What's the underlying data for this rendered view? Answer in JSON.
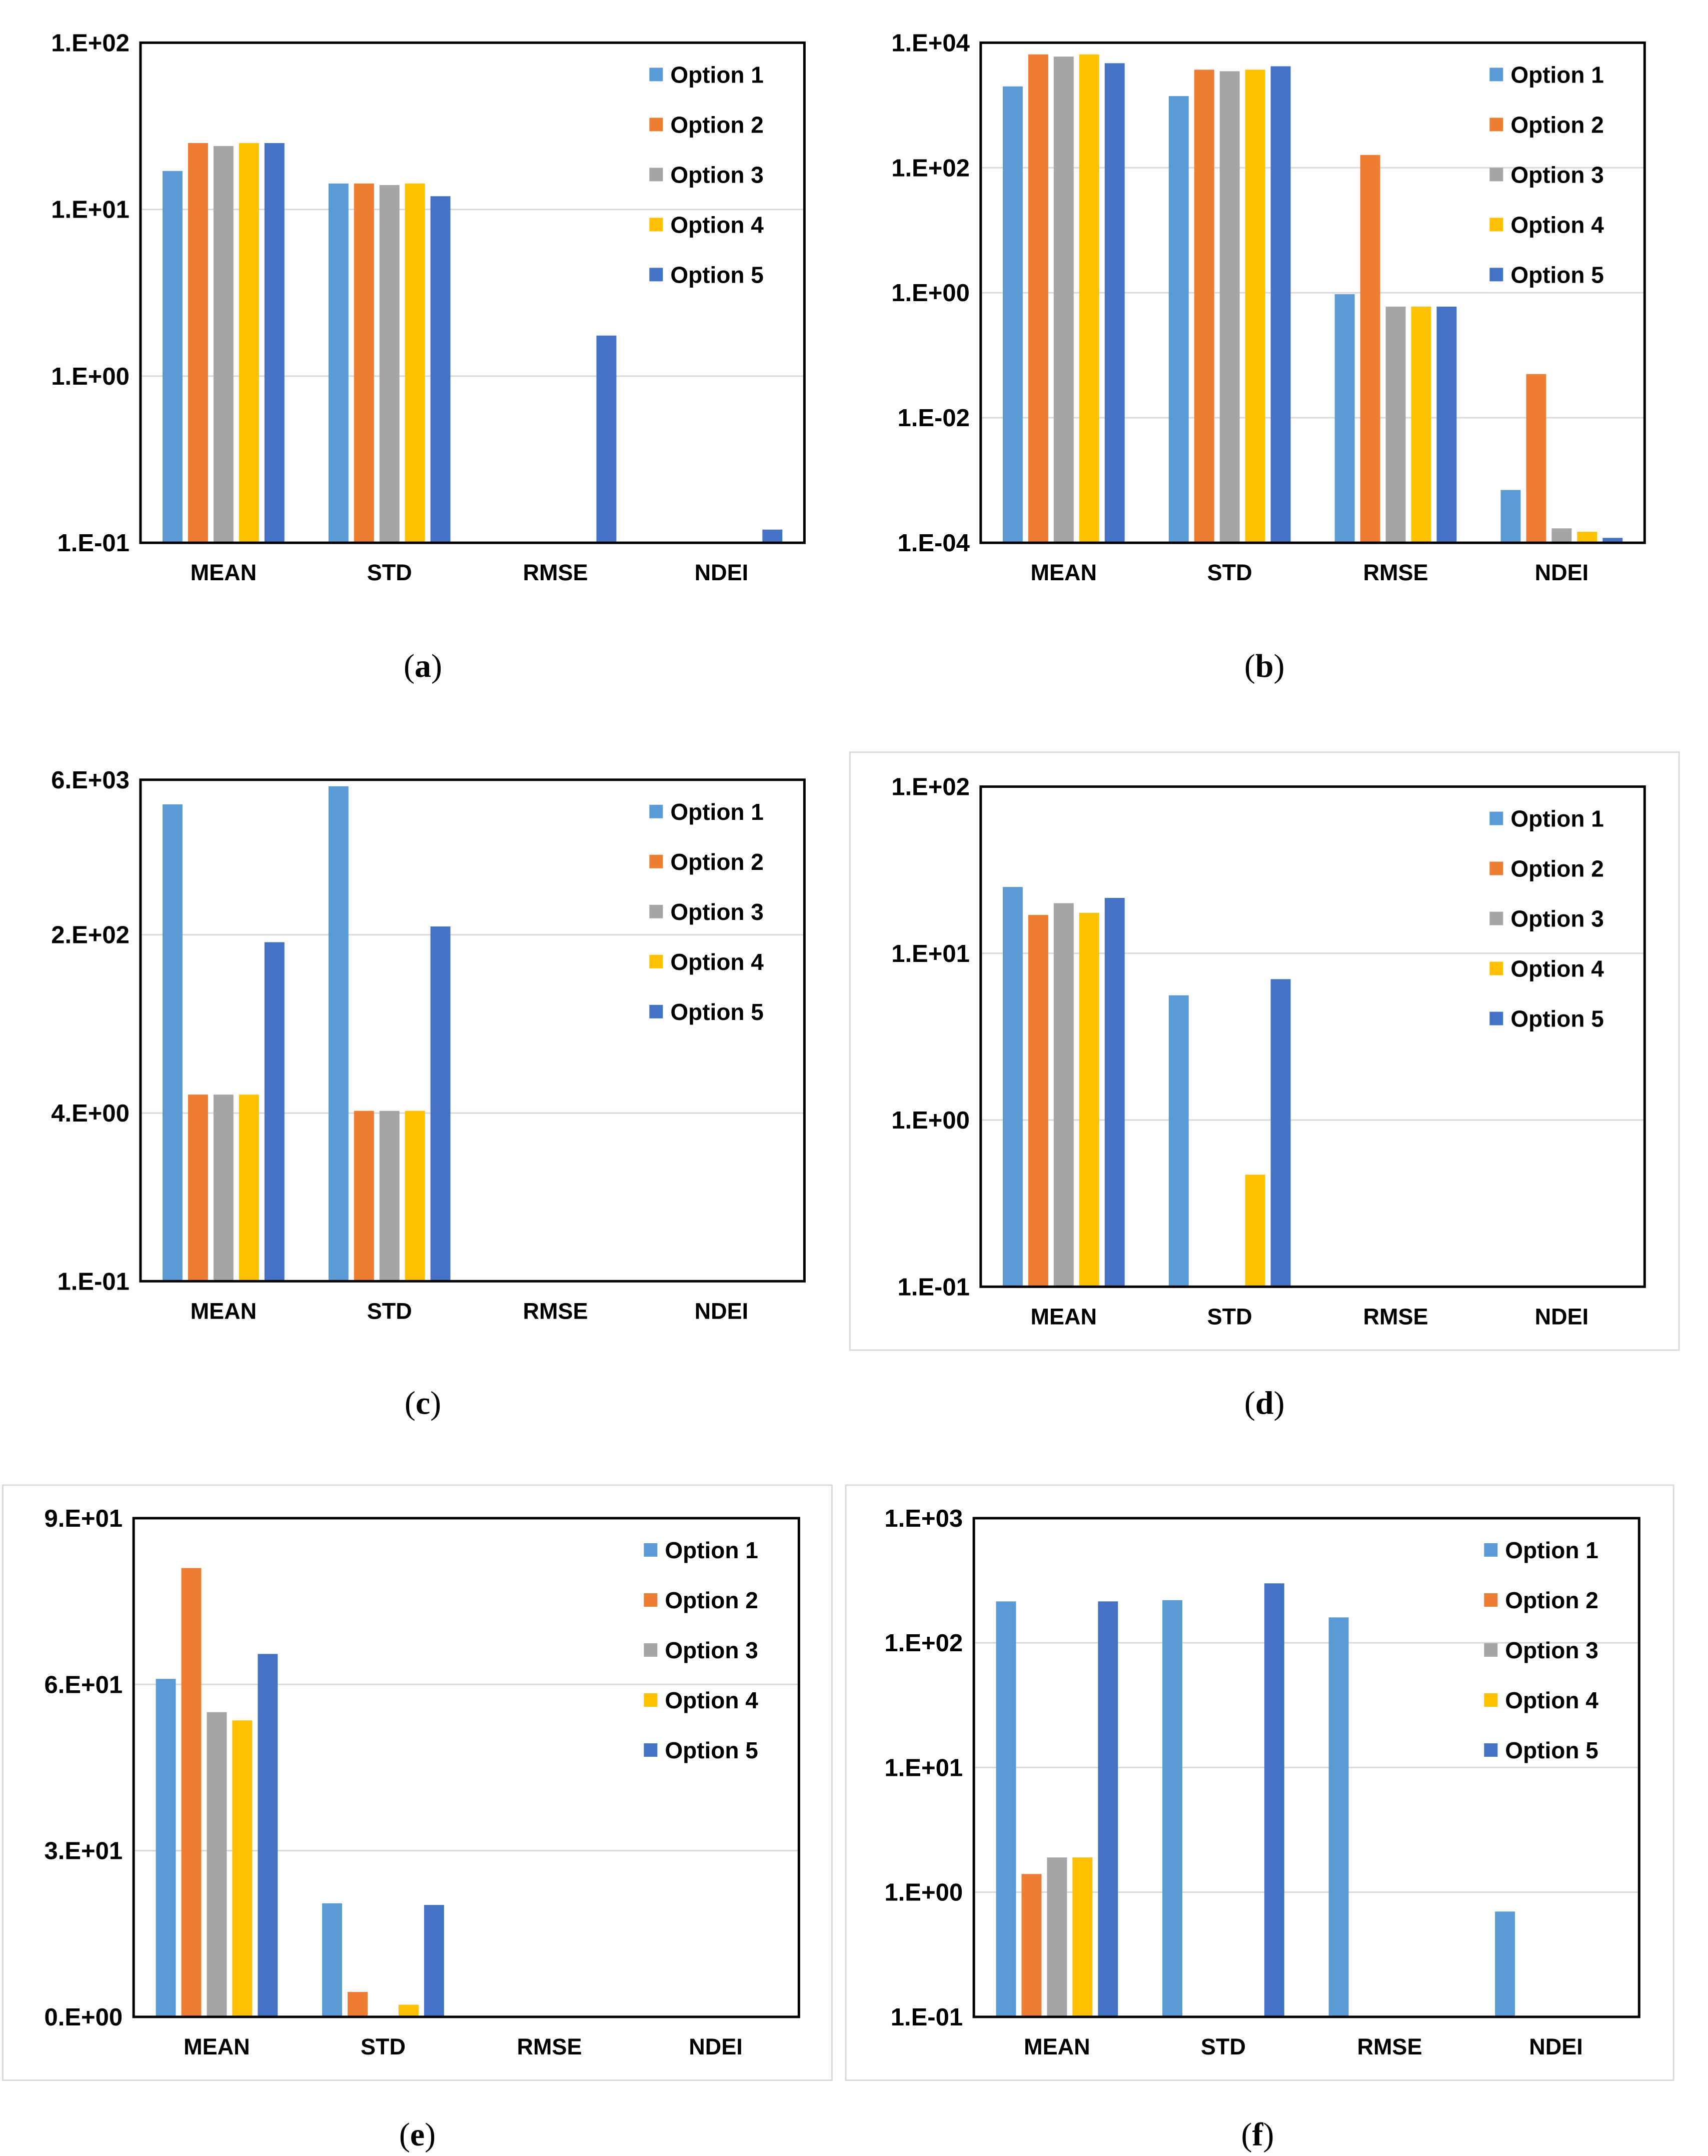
{
  "series_colors": [
    "#5B9BD5",
    "#ED7D31",
    "#A5A5A5",
    "#FFC000",
    "#4472C4"
  ],
  "chart_data": [
    {
      "type": "bar",
      "panel": "(a)",
      "categories": [
        "MEAN",
        "STD",
        "RMSE",
        "NDEI"
      ],
      "yscale": "log",
      "ylim": [
        0.1,
        100
      ],
      "yticks": [
        0.1,
        1,
        10,
        100
      ],
      "ytick_labels": [
        "1.E-01",
        "1.E+00",
        "1.E+01",
        "1.E+02"
      ],
      "grid": true,
      "legend_position": "top-right",
      "series": [
        {
          "name": "Option 1",
          "values": [
            17,
            14.3,
            null,
            null
          ]
        },
        {
          "name": "Option 2",
          "values": [
            25,
            14.3,
            null,
            null
          ]
        },
        {
          "name": "Option 3",
          "values": [
            24,
            14,
            null,
            null
          ]
        },
        {
          "name": "Option 4",
          "values": [
            25,
            14.3,
            null,
            null
          ]
        },
        {
          "name": "Option 5",
          "values": [
            25,
            12,
            1.75,
            0.12
          ]
        }
      ]
    },
    {
      "type": "bar",
      "panel": "(b)",
      "categories": [
        "MEAN",
        "STD",
        "RMSE",
        "NDEI"
      ],
      "yscale": "log",
      "ylim": [
        0.0001,
        10000
      ],
      "yticks": [
        0.0001,
        0.01,
        1,
        100,
        10000
      ],
      "ytick_labels": [
        "1.E-04",
        "1.E-02",
        "1.E+00",
        "1.E+02",
        "1.E+04"
      ],
      "grid": true,
      "legend_position": "top-right",
      "series": [
        {
          "name": "Option 1",
          "values": [
            2000,
            1400,
            0.95,
            0.0007
          ]
        },
        {
          "name": "Option 2",
          "values": [
            6500,
            3700,
            160,
            0.05
          ]
        },
        {
          "name": "Option 3",
          "values": [
            6000,
            3500,
            0.6,
            0.00017
          ]
        },
        {
          "name": "Option 4",
          "values": [
            6500,
            3700,
            0.6,
            0.00015
          ]
        },
        {
          "name": "Option 5",
          "values": [
            4700,
            4200,
            0.6,
            0.00012
          ]
        }
      ]
    },
    {
      "type": "bar",
      "panel": "(c)",
      "categories": [
        "MEAN",
        "STD",
        "RMSE",
        "NDEI"
      ],
      "yscale": "log",
      "ylim": [
        0.1,
        6000
      ],
      "yticks": [
        0.1,
        4,
        200,
        6000
      ],
      "ytick_labels": [
        "1.E-01",
        "4.E+00",
        "2.E+02",
        "6.E+03"
      ],
      "grid": true,
      "legend_position": "top-right",
      "series": [
        {
          "name": "Option 1",
          "values": [
            3500,
            5200,
            null,
            null
          ]
        },
        {
          "name": "Option 2",
          "values": [
            6,
            4.2,
            null,
            null
          ]
        },
        {
          "name": "Option 3",
          "values": [
            6,
            4.2,
            null,
            null
          ]
        },
        {
          "name": "Option 4",
          "values": [
            6,
            4.2,
            null,
            null
          ]
        },
        {
          "name": "Option 5",
          "values": [
            170,
            240,
            null,
            null
          ]
        }
      ]
    },
    {
      "type": "bar",
      "panel": "(d)",
      "categories": [
        "MEAN",
        "STD",
        "RMSE",
        "NDEI"
      ],
      "yscale": "log",
      "ylim": [
        0.1,
        100
      ],
      "yticks": [
        0.1,
        1,
        10,
        100
      ],
      "ytick_labels": [
        "1.E-01",
        "1.E+00",
        "1.E+01",
        "1.E+02"
      ],
      "grid": true,
      "legend_position": "top-right",
      "series": [
        {
          "name": "Option 1",
          "values": [
            25,
            5.6,
            null,
            null
          ]
        },
        {
          "name": "Option 2",
          "values": [
            17,
            null,
            null,
            null
          ]
        },
        {
          "name": "Option 3",
          "values": [
            20,
            null,
            null,
            null
          ]
        },
        {
          "name": "Option 4",
          "values": [
            17.5,
            0.47,
            null,
            null
          ]
        },
        {
          "name": "Option 5",
          "values": [
            21.5,
            7,
            null,
            null
          ]
        }
      ]
    },
    {
      "type": "bar",
      "panel": "(e)",
      "categories": [
        "MEAN",
        "STD",
        "RMSE",
        "NDEI"
      ],
      "yscale": "linear",
      "ylim": [
        0,
        90
      ],
      "yticks": [
        0,
        30,
        60,
        90
      ],
      "ytick_labels": [
        "0.E+00",
        "3.E+01",
        "6.E+01",
        "9.E+01"
      ],
      "grid": true,
      "legend_position": "top-right",
      "series": [
        {
          "name": "Option 1",
          "values": [
            61,
            20.5,
            null,
            null
          ]
        },
        {
          "name": "Option 2",
          "values": [
            81,
            4.5,
            null,
            null
          ]
        },
        {
          "name": "Option 3",
          "values": [
            55,
            null,
            null,
            null
          ]
        },
        {
          "name": "Option 4",
          "values": [
            53.5,
            2.2,
            null,
            null
          ]
        },
        {
          "name": "Option 5",
          "values": [
            65.5,
            20.2,
            null,
            null
          ]
        }
      ]
    },
    {
      "type": "bar",
      "panel": "(f)",
      "categories": [
        "MEAN",
        "STD",
        "RMSE",
        "NDEI"
      ],
      "yscale": "log",
      "ylim": [
        0.1,
        1000
      ],
      "yticks": [
        0.1,
        1,
        10,
        100,
        1000
      ],
      "ytick_labels": [
        "1.E-01",
        "1.E+00",
        "1.E+01",
        "1.E+02",
        "1.E+03"
      ],
      "grid": true,
      "legend_position": "top-right",
      "series": [
        {
          "name": "Option 1",
          "values": [
            215,
            220,
            160,
            0.7
          ]
        },
        {
          "name": "Option 2",
          "values": [
            1.4,
            null,
            null,
            null
          ]
        },
        {
          "name": "Option 3",
          "values": [
            1.9,
            null,
            null,
            null
          ]
        },
        {
          "name": "Option 4",
          "values": [
            1.9,
            null,
            null,
            null
          ]
        },
        {
          "name": "Option 5",
          "values": [
            215,
            300,
            null,
            null
          ]
        }
      ]
    }
  ]
}
